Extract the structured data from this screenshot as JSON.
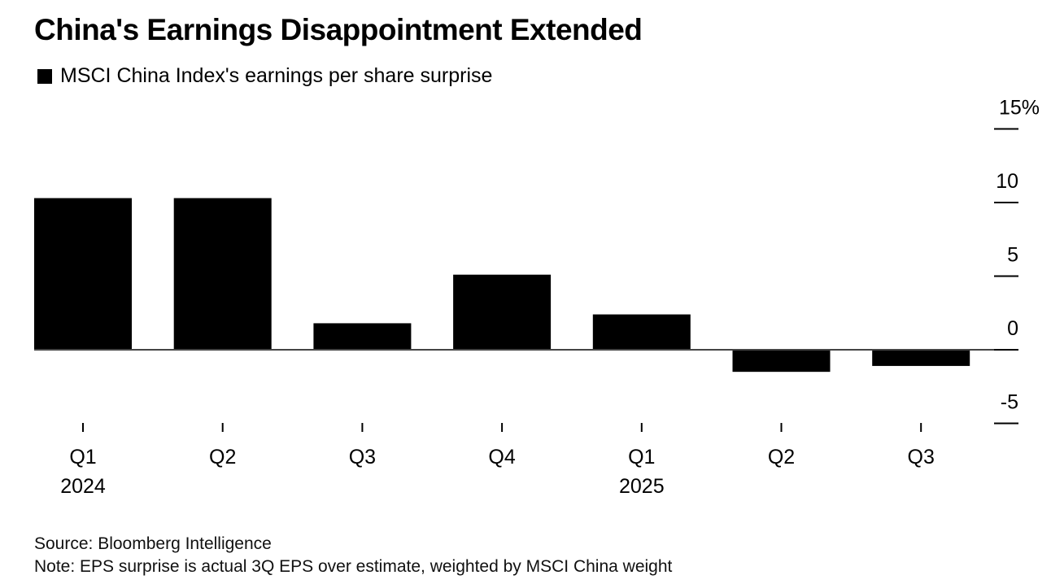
{
  "title": "China's Earnings Disappointment Extended",
  "legend_label": "MSCI China Index's earnings per share surprise",
  "source": "Source: Bloomberg Intelligence",
  "note": "Note: EPS surprise is actual 3Q EPS over estimate, weighted by MSCI China weight",
  "chart_data": {
    "type": "bar",
    "title": "China's Earnings Disappointment Extended",
    "categories": [
      "Q1 2024",
      "Q2 2024",
      "Q3 2024",
      "Q4 2024",
      "Q1 2025",
      "Q2 2025",
      "Q3 2025"
    ],
    "tick_labels": [
      {
        "quarter": "Q1",
        "year": "2024"
      },
      {
        "quarter": "Q2",
        "year": ""
      },
      {
        "quarter": "Q3",
        "year": ""
      },
      {
        "quarter": "Q4",
        "year": ""
      },
      {
        "quarter": "Q1",
        "year": "2025"
      },
      {
        "quarter": "Q2",
        "year": ""
      },
      {
        "quarter": "Q3",
        "year": ""
      }
    ],
    "series": [
      {
        "name": "MSCI China Index's earnings per share surprise",
        "values": [
          10.3,
          10.3,
          1.8,
          5.1,
          2.4,
          -1.5,
          -1.1
        ],
        "color": "#000000"
      }
    ],
    "ylim": [
      -5,
      15
    ],
    "yticks": [
      15,
      10,
      5,
      0,
      -5
    ],
    "ytick_labels": [
      "15%",
      "10",
      "5",
      "0",
      "-5"
    ],
    "y_axis_position": "right",
    "legend_position": "top-left",
    "grid": false,
    "xlabel": "",
    "ylabel": ""
  }
}
